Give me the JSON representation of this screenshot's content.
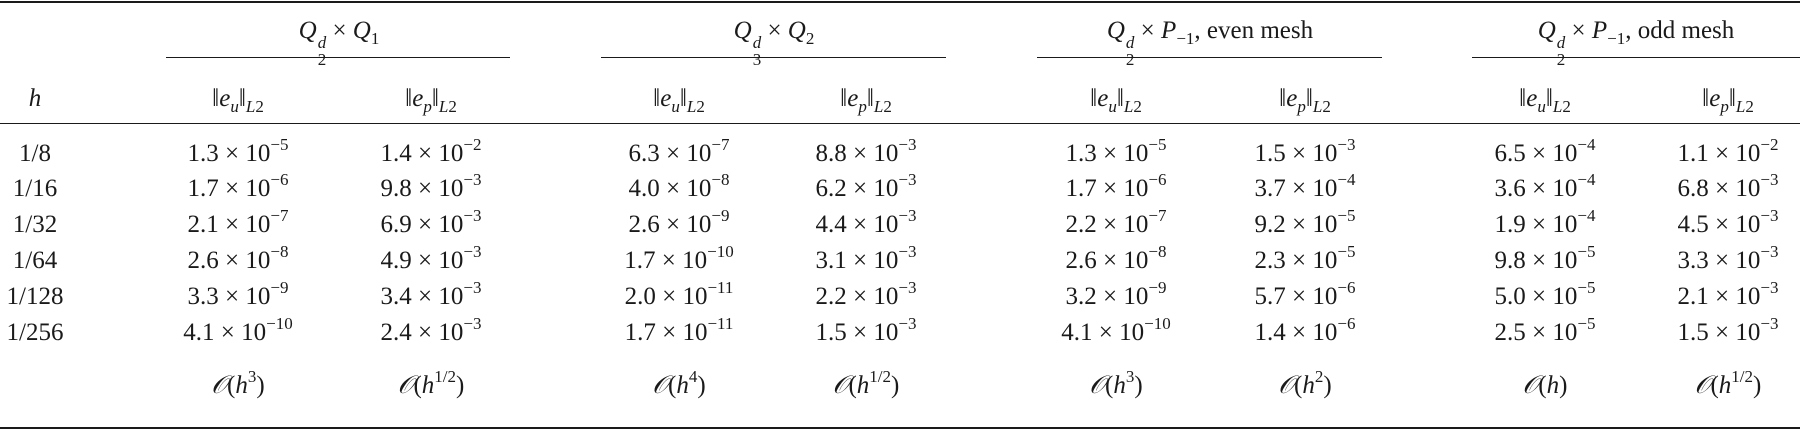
{
  "table": {
    "h_label": "h",
    "groups": [
      {
        "header": {
          "base": "Q",
          "sup": "d",
          "sub": "2",
          "times": "×",
          "b2": "Q",
          "b2sub": "1",
          "suffix": ""
        },
        "cols": [
          {
            "label": {
              "norm": "‖",
              "var": "e",
              "var_sub": "u",
              "norm_close": "‖",
              "space": "L",
              "space_sub": "2"
            },
            "rates": {
              "O": "𝒪",
              "open": "(",
              "base": "h",
              "exp": "3",
              "close": ")"
            }
          },
          {
            "label": {
              "norm": "‖",
              "var": "e",
              "var_sub": "p",
              "norm_close": "‖",
              "space": "L",
              "space_sub": "2"
            },
            "rates": {
              "O": "𝒪",
              "open": "(",
              "base": "h",
              "exp": "1/2",
              "close": ")"
            }
          }
        ]
      },
      {
        "header": {
          "base": "Q",
          "sup": "d",
          "sub": "3",
          "times": "×",
          "b2": "Q",
          "b2sub": "2",
          "suffix": ""
        },
        "cols": [
          {
            "label": {
              "norm": "‖",
              "var": "e",
              "var_sub": "u",
              "norm_close": "‖",
              "space": "L",
              "space_sub": "2"
            },
            "rates": {
              "O": "𝒪",
              "open": "(",
              "base": "h",
              "exp": "4",
              "close": ")"
            }
          },
          {
            "label": {
              "norm": "‖",
              "var": "e",
              "var_sub": "p",
              "norm_close": "‖",
              "space": "L",
              "space_sub": "2"
            },
            "rates": {
              "O": "𝒪",
              "open": "(",
              "base": "h",
              "exp": "1/2",
              "close": ")"
            }
          }
        ]
      },
      {
        "header": {
          "base": "Q",
          "sup": "d",
          "sub": "2",
          "times": "×",
          "b2": "P",
          "b2sub": "−1",
          "suffix": ", even mesh"
        },
        "cols": [
          {
            "label": {
              "norm": "‖",
              "var": "e",
              "var_sub": "u",
              "norm_close": "‖",
              "space": "L",
              "space_sub": "2"
            },
            "rates": {
              "O": "𝒪",
              "open": "(",
              "base": "h",
              "exp": "3",
              "close": ")"
            }
          },
          {
            "label": {
              "norm": "‖",
              "var": "e",
              "var_sub": "p",
              "norm_close": "‖",
              "space": "L",
              "space_sub": "2"
            },
            "rates": {
              "O": "𝒪",
              "open": "(",
              "base": "h",
              "exp": "2",
              "close": ")"
            }
          }
        ]
      },
      {
        "header": {
          "base": "Q",
          "sup": "d",
          "sub": "2",
          "times": "×",
          "b2": "P",
          "b2sub": "−1",
          "suffix": ", odd mesh"
        },
        "cols": [
          {
            "label": {
              "norm": "‖",
              "var": "e",
              "var_sub": "u",
              "norm_close": "‖",
              "space": "L",
              "space_sub": "2"
            },
            "rates": {
              "O": "𝒪",
              "open": "(",
              "base": "h",
              "exp": "",
              "close": ")"
            }
          },
          {
            "label": {
              "norm": "‖",
              "var": "e",
              "var_sub": "p",
              "norm_close": "‖",
              "space": "L",
              "space_sub": "2"
            },
            "rates": {
              "O": "𝒪",
              "open": "(",
              "base": "h",
              "exp": "1/2",
              "close": ")"
            }
          }
        ]
      }
    ],
    "rows": [
      {
        "h": "1/8",
        "vals": [
          [
            "1.3",
            "−5"
          ],
          [
            "1.4",
            "−2"
          ],
          [
            "6.3",
            "−7"
          ],
          [
            "8.8",
            "−3"
          ],
          [
            "1.3",
            "−5"
          ],
          [
            "1.5",
            "−3"
          ],
          [
            "6.5",
            "−4"
          ],
          [
            "1.1",
            "−2"
          ]
        ]
      },
      {
        "h": "1/16",
        "vals": [
          [
            "1.7",
            "−6"
          ],
          [
            "9.8",
            "−3"
          ],
          [
            "4.0",
            "−8"
          ],
          [
            "6.2",
            "−3"
          ],
          [
            "1.7",
            "−6"
          ],
          [
            "3.7",
            "−4"
          ],
          [
            "3.6",
            "−4"
          ],
          [
            "6.8",
            "−3"
          ]
        ]
      },
      {
        "h": "1/32",
        "vals": [
          [
            "2.1",
            "−7"
          ],
          [
            "6.9",
            "−3"
          ],
          [
            "2.6",
            "−9"
          ],
          [
            "4.4",
            "−3"
          ],
          [
            "2.2",
            "−7"
          ],
          [
            "9.2",
            "−5"
          ],
          [
            "1.9",
            "−4"
          ],
          [
            "4.5",
            "−3"
          ]
        ]
      },
      {
        "h": "1/64",
        "vals": [
          [
            "2.6",
            "−8"
          ],
          [
            "4.9",
            "−3"
          ],
          [
            "1.7",
            "−10"
          ],
          [
            "3.1",
            "−3"
          ],
          [
            "2.6",
            "−8"
          ],
          [
            "2.3",
            "−5"
          ],
          [
            "9.8",
            "−5"
          ],
          [
            "3.3",
            "−3"
          ]
        ]
      },
      {
        "h": "1/128",
        "vals": [
          [
            "3.3",
            "−9"
          ],
          [
            "3.4",
            "−3"
          ],
          [
            "2.0",
            "−11"
          ],
          [
            "2.2",
            "−3"
          ],
          [
            "3.2",
            "−9"
          ],
          [
            "5.7",
            "−6"
          ],
          [
            "5.0",
            "−5"
          ],
          [
            "2.1",
            "−3"
          ]
        ]
      },
      {
        "h": "1/256",
        "vals": [
          [
            "4.1",
            "−10"
          ],
          [
            "2.4",
            "−3"
          ],
          [
            "1.7",
            "−11"
          ],
          [
            "1.5",
            "−3"
          ],
          [
            "4.1",
            "−10"
          ],
          [
            "1.4",
            "−6"
          ],
          [
            "2.5",
            "−5"
          ],
          [
            "1.5",
            "−3"
          ]
        ]
      }
    ],
    "sci": {
      "times": "×",
      "base": "10"
    }
  }
}
